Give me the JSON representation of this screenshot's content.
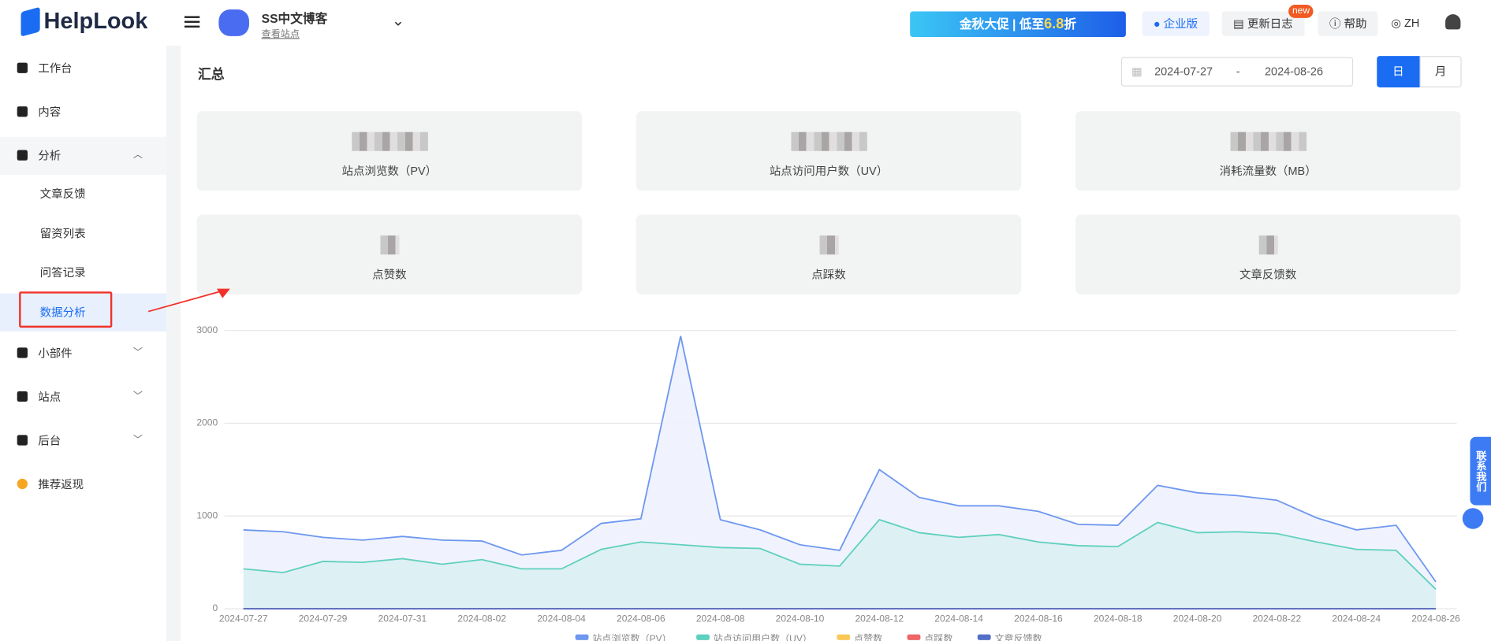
{
  "header": {
    "logo": "HelpLook",
    "site_name": "SS中文博客",
    "site_link": "查看站点",
    "promo": [
      "金秋大促 | 低至",
      "6.8",
      "折"
    ],
    "promo_badge": "new",
    "enterprise": "企业版",
    "changelog": "更新日志",
    "help": "帮助",
    "language": "ZH"
  },
  "sidebar": {
    "items": [
      {
        "label": "工作台"
      },
      {
        "label": "内容"
      },
      {
        "label": "分析",
        "children": [
          "文章反馈",
          "留资列表",
          "问答记录",
          "数据分析"
        ]
      },
      {
        "label": "小部件"
      },
      {
        "label": "站点"
      },
      {
        "label": "后台"
      },
      {
        "label": "推荐返现"
      }
    ]
  },
  "summary": {
    "title": "汇总",
    "date_start": "2024-07-27",
    "date_sep": "-",
    "date_end": "2024-08-26",
    "toggle": [
      "日",
      "月"
    ],
    "cards": [
      "站点浏览数（PV）",
      "站点访问用户数（UV）",
      "消耗流量数（MB）",
      "点赞数",
      "点踩数",
      "文章反馈数"
    ]
  },
  "contact": "联系我们",
  "chart_data": {
    "type": "line",
    "x": [
      "2024-07-27",
      "2024-07-28",
      "2024-07-29",
      "2024-07-30",
      "2024-07-31",
      "2024-08-01",
      "2024-08-02",
      "2024-08-03",
      "2024-08-04",
      "2024-08-05",
      "2024-08-06",
      "2024-08-07",
      "2024-08-08",
      "2024-08-09",
      "2024-08-10",
      "2024-08-11",
      "2024-08-12",
      "2024-08-13",
      "2024-08-14",
      "2024-08-15",
      "2024-08-16",
      "2024-08-17",
      "2024-08-18",
      "2024-08-19",
      "2024-08-20",
      "2024-08-21",
      "2024-08-22",
      "2024-08-23",
      "2024-08-24",
      "2024-08-25",
      "2024-08-26"
    ],
    "ylim": [
      0,
      3000
    ],
    "yticks": [
      0,
      1000,
      2000,
      3000
    ],
    "grid": true,
    "series": [
      {
        "name": "站点浏览数（PV）",
        "color": "#6e97f0",
        "fill": "#eef2fd",
        "values": [
          850,
          830,
          770,
          740,
          780,
          740,
          730,
          580,
          630,
          920,
          970,
          2940,
          960,
          850,
          690,
          630,
          1500,
          1200,
          1110,
          1110,
          1050,
          910,
          900,
          1330,
          1250,
          1220,
          1170,
          980,
          850,
          900,
          290
        ]
      },
      {
        "name": "站点访问用户数（UV）",
        "color": "#5fd0be",
        "fill": "#dcf0f3",
        "values": [
          430,
          390,
          510,
          500,
          540,
          480,
          530,
          430,
          430,
          640,
          720,
          690,
          660,
          650,
          480,
          460,
          960,
          820,
          770,
          800,
          720,
          680,
          670,
          930,
          820,
          830,
          810,
          720,
          640,
          630,
          210
        ]
      },
      {
        "name": "点赞数",
        "color": "#fac858",
        "values": [
          0,
          0,
          0,
          0,
          0,
          0,
          0,
          0,
          0,
          0,
          0,
          0,
          0,
          0,
          0,
          0,
          0,
          0,
          0,
          0,
          0,
          0,
          0,
          0,
          0,
          0,
          0,
          0,
          0,
          0,
          0
        ]
      },
      {
        "name": "点踩数",
        "color": "#ee6666",
        "values": [
          0,
          0,
          0,
          0,
          0,
          0,
          0,
          0,
          0,
          0,
          0,
          0,
          0,
          0,
          0,
          0,
          0,
          0,
          0,
          0,
          0,
          0,
          0,
          0,
          0,
          0,
          0,
          0,
          0,
          0,
          0
        ]
      },
      {
        "name": "文章反馈数",
        "color": "#5470c6",
        "values": [
          0,
          0,
          0,
          0,
          0,
          0,
          0,
          0,
          0,
          0,
          0,
          0,
          0,
          0,
          0,
          0,
          0,
          0,
          0,
          0,
          0,
          0,
          0,
          0,
          0,
          0,
          0,
          0,
          0,
          0,
          0
        ]
      }
    ]
  }
}
